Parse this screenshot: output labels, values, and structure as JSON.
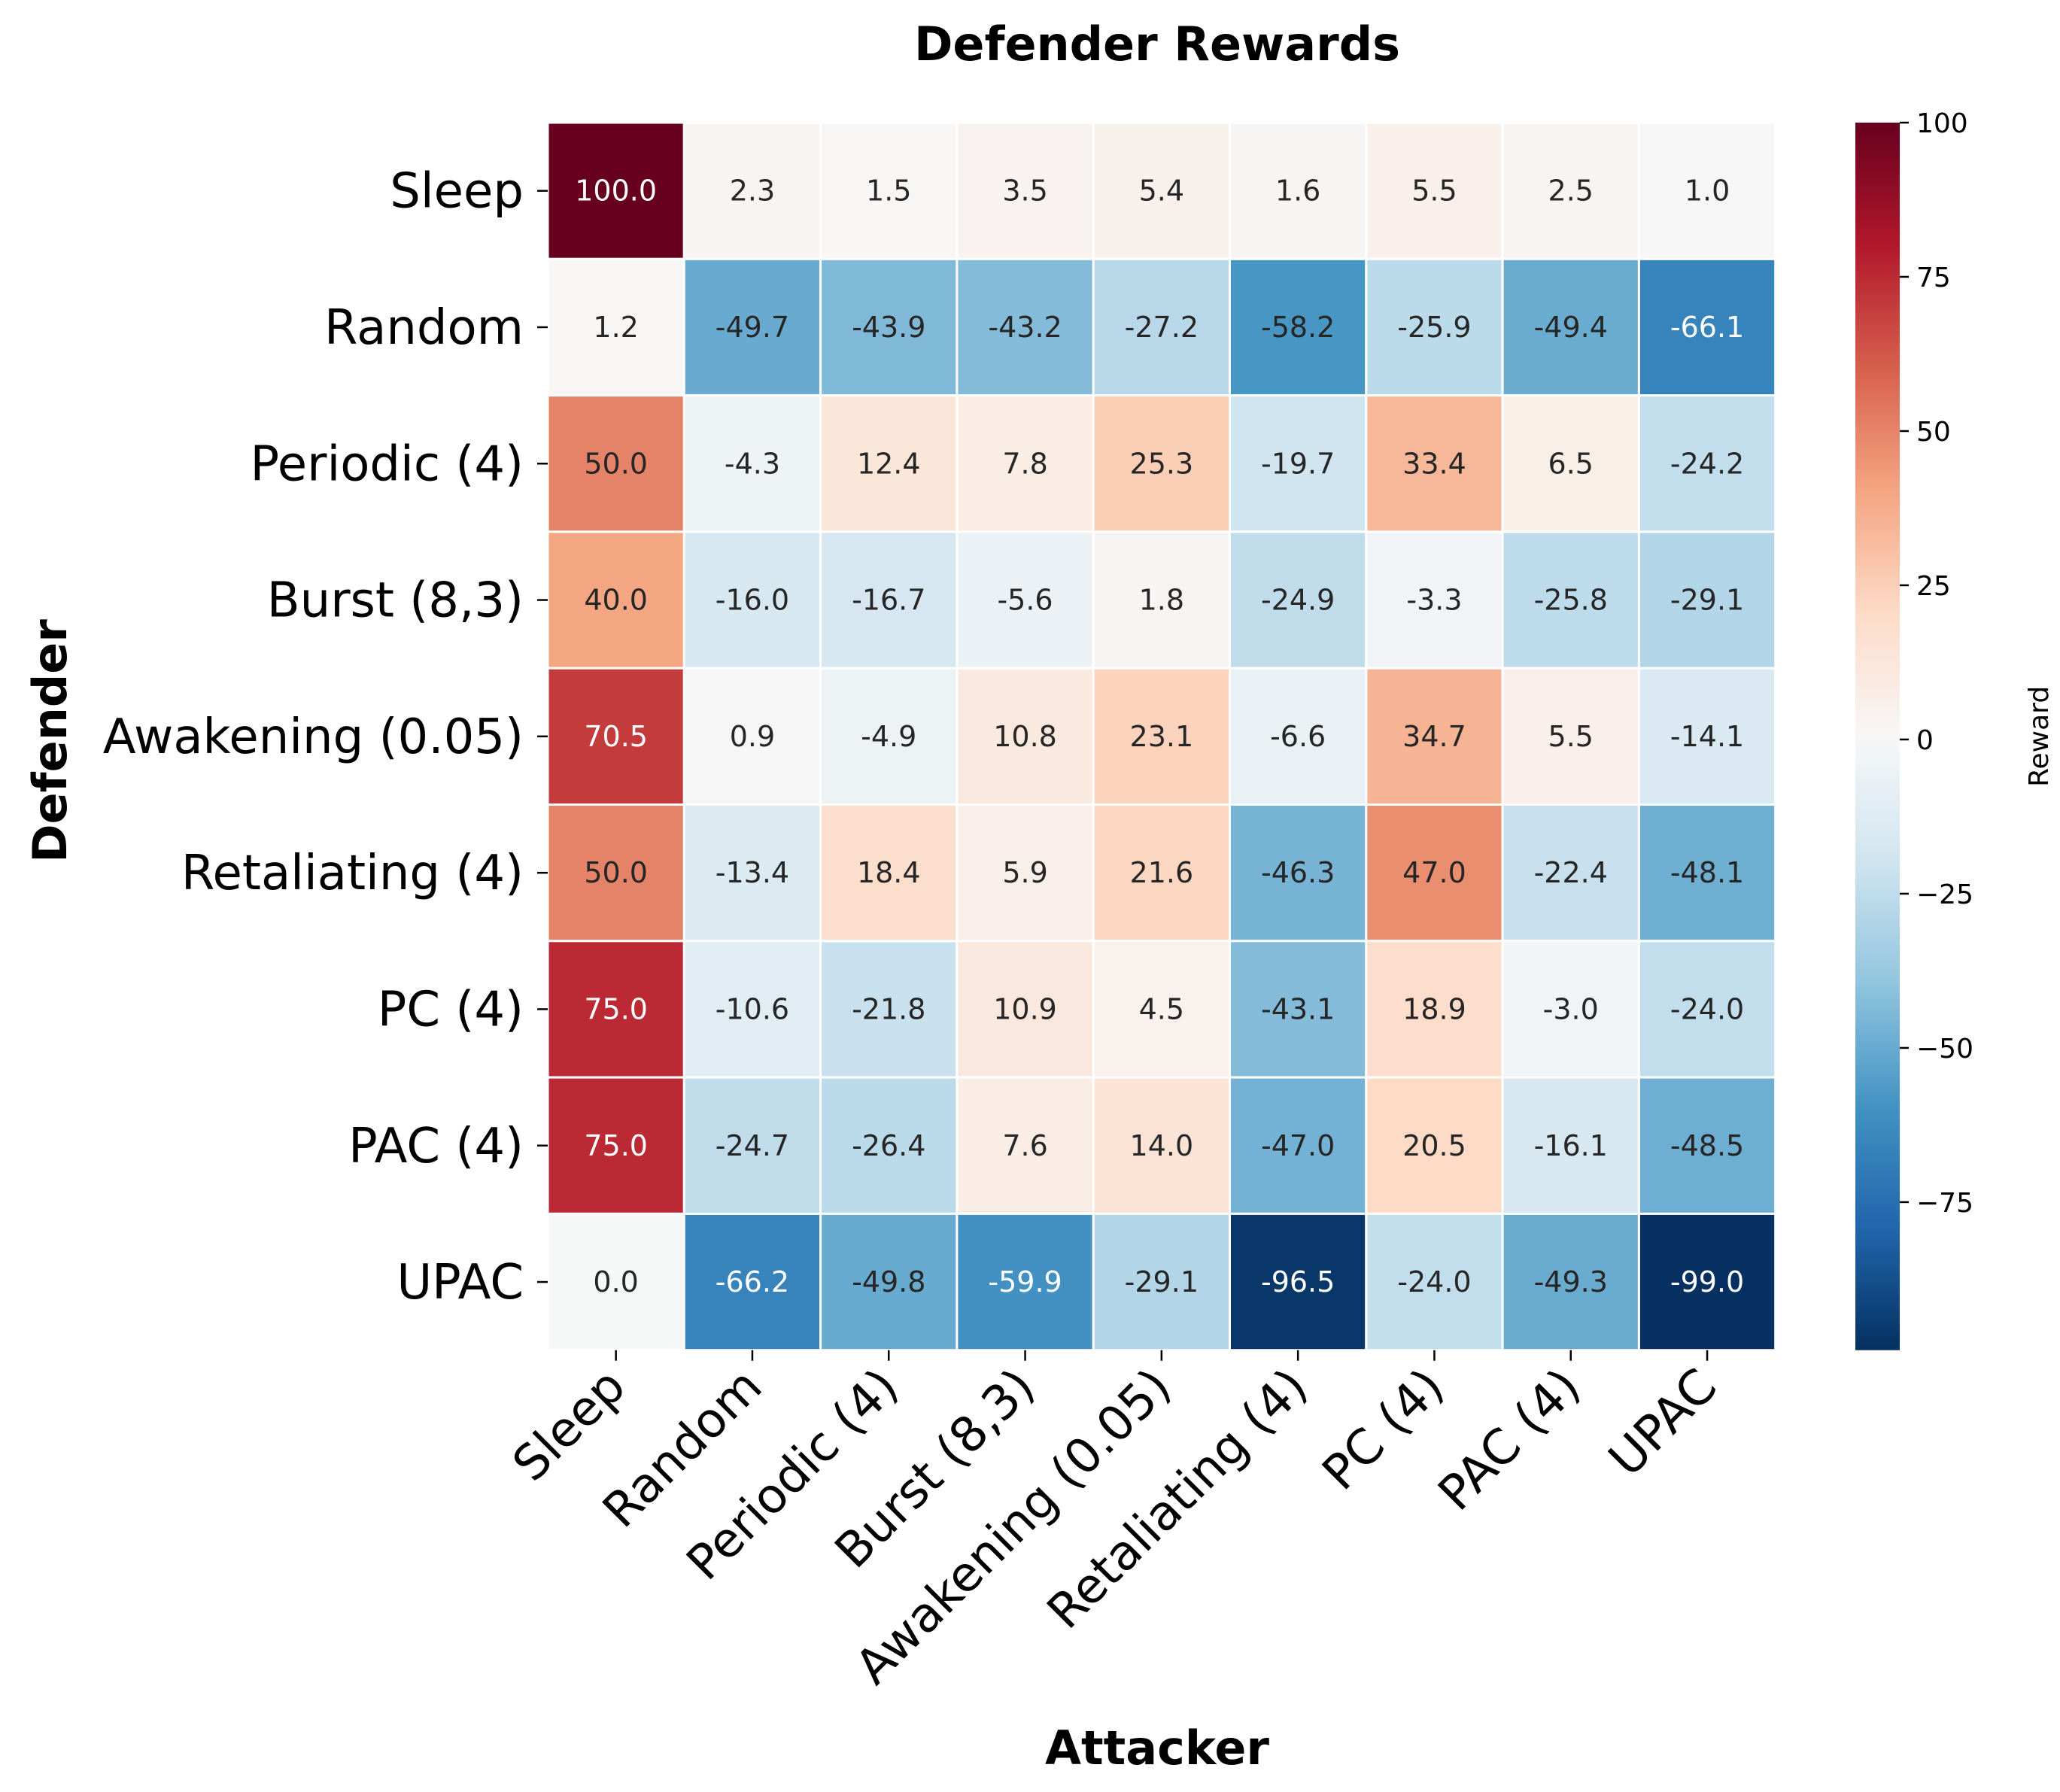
{
  "chart_data": {
    "type": "heatmap",
    "title": "Defender Rewards",
    "xlabel": "Attacker",
    "ylabel": "Defender",
    "x_categories": [
      "Sleep",
      "Random",
      "Periodic (4)",
      "Burst (8,3)",
      "Awakening (0.05)",
      "Retaliating (4)",
      "PC (4)",
      "PAC (4)",
      "UPAC"
    ],
    "y_categories": [
      "Sleep",
      "Random",
      "Periodic (4)",
      "Burst (8,3)",
      "Awakening (0.05)",
      "Retaliating (4)",
      "PC (4)",
      "PAC (4)",
      "UPAC"
    ],
    "values": [
      [
        100.0,
        2.3,
        1.5,
        3.5,
        5.4,
        1.6,
        5.5,
        2.5,
        1.0
      ],
      [
        1.2,
        -49.7,
        -43.9,
        -43.2,
        -27.2,
        -58.2,
        -25.9,
        -49.4,
        -66.1
      ],
      [
        50.0,
        -4.3,
        12.4,
        7.8,
        25.3,
        -19.7,
        33.4,
        6.5,
        -24.2
      ],
      [
        40.0,
        -16.0,
        -16.7,
        -5.6,
        1.8,
        -24.9,
        -3.3,
        -25.8,
        -29.1
      ],
      [
        70.5,
        0.9,
        -4.9,
        10.8,
        23.1,
        -6.6,
        34.7,
        5.5,
        -14.1
      ],
      [
        50.0,
        -13.4,
        18.4,
        5.9,
        21.6,
        -46.3,
        47.0,
        -22.4,
        -48.1
      ],
      [
        75.0,
        -10.6,
        -21.8,
        10.9,
        4.5,
        -43.1,
        18.9,
        -3.0,
        -24.0
      ],
      [
        75.0,
        -24.7,
        -26.4,
        7.6,
        14.0,
        -47.0,
        20.5,
        -16.1,
        -48.5
      ],
      [
        0.0,
        -66.2,
        -49.8,
        -59.9,
        -29.1,
        -96.5,
        -24.0,
        -49.3,
        -99.0
      ]
    ],
    "value_format": "1 decimal",
    "colormap": "RdBu_r",
    "vmin": -99.0,
    "vmax": 100.0,
    "colorbar": {
      "label": "Reward",
      "ticks": [
        100,
        75,
        50,
        25,
        0,
        -25,
        -50,
        -75
      ],
      "tick_labels": [
        "100",
        "75",
        "50",
        "25",
        "0",
        "−25",
        "−50",
        "−75"
      ],
      "placement": "right"
    },
    "grid": false
  }
}
